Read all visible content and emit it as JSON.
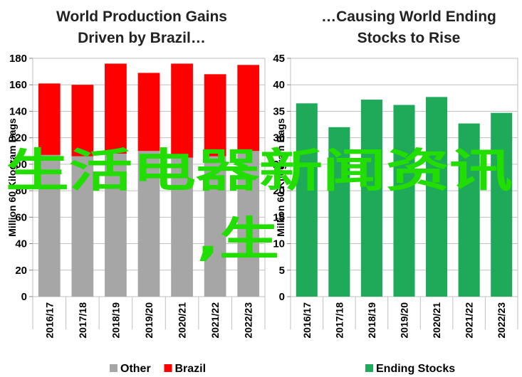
{
  "chart_data": [
    {
      "type": "bar",
      "stacked": true,
      "title": [
        "World Production Gains",
        "Driven by Brazil…"
      ],
      "ylabel": "Million 60 Kilogram Bags",
      "xlabel": "",
      "ylim": [
        0,
        180
      ],
      "yticks": [
        0,
        20,
        40,
        60,
        80,
        100,
        120,
        140,
        160,
        180
      ],
      "grid": true,
      "legend": "bottom",
      "categories": [
        "2016/17",
        "2017/18",
        "2018/19",
        "2019/20",
        "2020/21",
        "2021/22",
        "2022/23"
      ],
      "series": [
        {
          "name": "Other",
          "color": "#a6a6a6",
          "values": [
            107,
            106,
            108,
            110,
            105,
            106,
            110
          ]
        },
        {
          "name": "Brazil",
          "color": "#ff0000",
          "values": [
            54,
            54,
            68,
            59,
            71,
            62,
            65
          ]
        }
      ]
    },
    {
      "type": "bar",
      "title": [
        "…Causing World Ending",
        "Stocks to Rise"
      ],
      "ylabel": "Million 60 Kilogram Bags",
      "xlabel": "",
      "ylim": [
        0,
        45
      ],
      "yticks": [
        0,
        5,
        10,
        15,
        20,
        25,
        30,
        35,
        40,
        45
      ],
      "grid": true,
      "legend": "bottom",
      "categories": [
        "2016/17",
        "2017/18",
        "2018/19",
        "2019/20",
        "2020/21",
        "2021/22",
        "2022/23"
      ],
      "series": [
        {
          "name": "Ending Stocks",
          "color": "#1faa59",
          "values": [
            36.5,
            32.0,
            37.2,
            36.2,
            37.7,
            32.7,
            34.7
          ]
        }
      ]
    }
  ],
  "overlay": {
    "line1": "生活电器新闻资讯",
    "line2": ",生"
  }
}
